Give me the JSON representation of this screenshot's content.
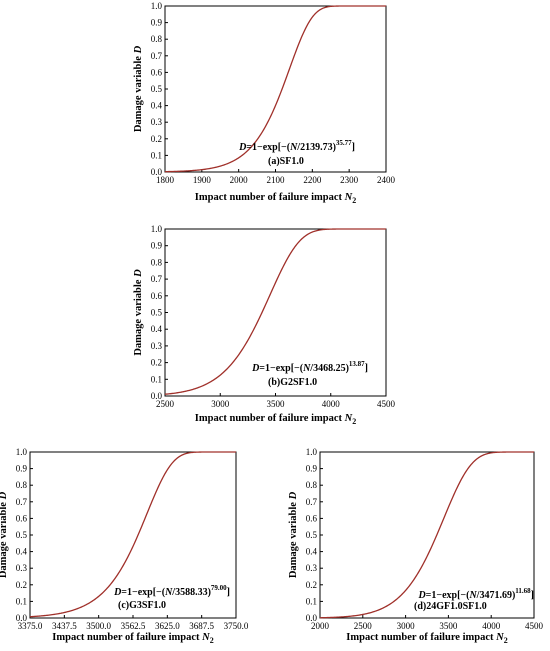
{
  "colors": {
    "curve": "#a0302a",
    "axis": "#000000",
    "background": "#ffffff"
  },
  "chart_data": [
    {
      "id": "a",
      "type": "line",
      "label": "(a)SF1.0",
      "equation": {
        "prefix": "=1−exp[−(",
        "var": "N",
        "divisor": "/2139.73)",
        "exponent": "35.77",
        "suffix": "]"
      },
      "weibull": {
        "scale": 2139.73,
        "shape": 35.77
      },
      "xlabel": "Impact number of failure impact N",
      "xlabel_sub": "2",
      "ylabel": "Damage variable D",
      "xlim": [
        1800,
        2400
      ],
      "ylim": [
        0,
        1.0
      ],
      "xticks": [
        "1800",
        "1900",
        "2000",
        "2100",
        "2200",
        "2300",
        "2400"
      ],
      "xtick_values": [
        1800,
        1900,
        2000,
        2100,
        2200,
        2300,
        2400
      ],
      "yticks": [
        "0.0",
        "0.1",
        "0.2",
        "0.3",
        "0.4",
        "0.5",
        "0.6",
        "0.7",
        "0.8",
        "0.9",
        "1.0"
      ]
    },
    {
      "id": "b",
      "type": "line",
      "label": "(b)G2SF1.0",
      "equation": {
        "prefix": "=1−exp[−(",
        "var": "N",
        "divisor": "/3468.25)",
        "exponent": "13.87",
        "suffix": "]"
      },
      "weibull": {
        "scale": 3468.25,
        "shape": 13.87
      },
      "xlabel": "Impact number of failure impact N",
      "xlabel_sub": "2",
      "ylabel": "Damage variable D",
      "xlim": [
        2500,
        4500
      ],
      "ylim": [
        0,
        1.0
      ],
      "xticks": [
        "2500",
        "3000",
        "3500",
        "4000",
        "4500"
      ],
      "xtick_values": [
        2500,
        3000,
        3500,
        4000,
        4500
      ],
      "yticks": [
        "0.0",
        "0.1",
        "0.2",
        "0.3",
        "0.4",
        "0.5",
        "0.6",
        "0.7",
        "0.8",
        "0.9",
        "1.0"
      ]
    },
    {
      "id": "c",
      "type": "line",
      "label": "(c)G3SF1.0",
      "equation": {
        "prefix": "=1−exp[−(",
        "var": "N",
        "divisor": "/3588.33)",
        "exponent": "79.00",
        "suffix": "]"
      },
      "weibull": {
        "scale": 3588.33,
        "shape": 79.0
      },
      "xlabel": "Impact number of failure impact N",
      "xlabel_sub": "2",
      "ylabel": "Damage variable D",
      "xlim": [
        3375.0,
        3750.0
      ],
      "ylim": [
        0,
        1.0
      ],
      "xticks": [
        "3375.0",
        "3437.5",
        "3500.0",
        "3562.5",
        "3625.0",
        "3687.5",
        "3750.0"
      ],
      "xtick_values": [
        3375.0,
        3437.5,
        3500.0,
        3562.5,
        3625.0,
        3687.5,
        3750.0
      ],
      "yticks": [
        "0.0",
        "0.1",
        "0.2",
        "0.3",
        "0.4",
        "0.5",
        "0.6",
        "0.7",
        "0.8",
        "0.9",
        "1.0"
      ]
    },
    {
      "id": "d",
      "type": "line",
      "label": "(d)24GF1.0SF1.0",
      "equation": {
        "prefix": "=1−exp[−(",
        "var": "N",
        "divisor": "/3471.69)",
        "exponent": "11.68",
        "suffix": "]"
      },
      "weibull": {
        "scale": 3471.69,
        "shape": 11.68
      },
      "xlabel": "Impact number of failure impact N",
      "xlabel_sub": "2",
      "ylabel": "Damage variable D",
      "xlim": [
        2000,
        4500
      ],
      "ylim": [
        0,
        1.0
      ],
      "xticks": [
        "2000",
        "2500",
        "3000",
        "3500",
        "4000",
        "4500"
      ],
      "xtick_values": [
        2000,
        2500,
        3000,
        3500,
        4000,
        4500
      ],
      "yticks": [
        "0.0",
        "0.1",
        "0.2",
        "0.3",
        "0.4",
        "0.5",
        "0.6",
        "0.7",
        "0.8",
        "0.9",
        "1.0"
      ]
    }
  ]
}
